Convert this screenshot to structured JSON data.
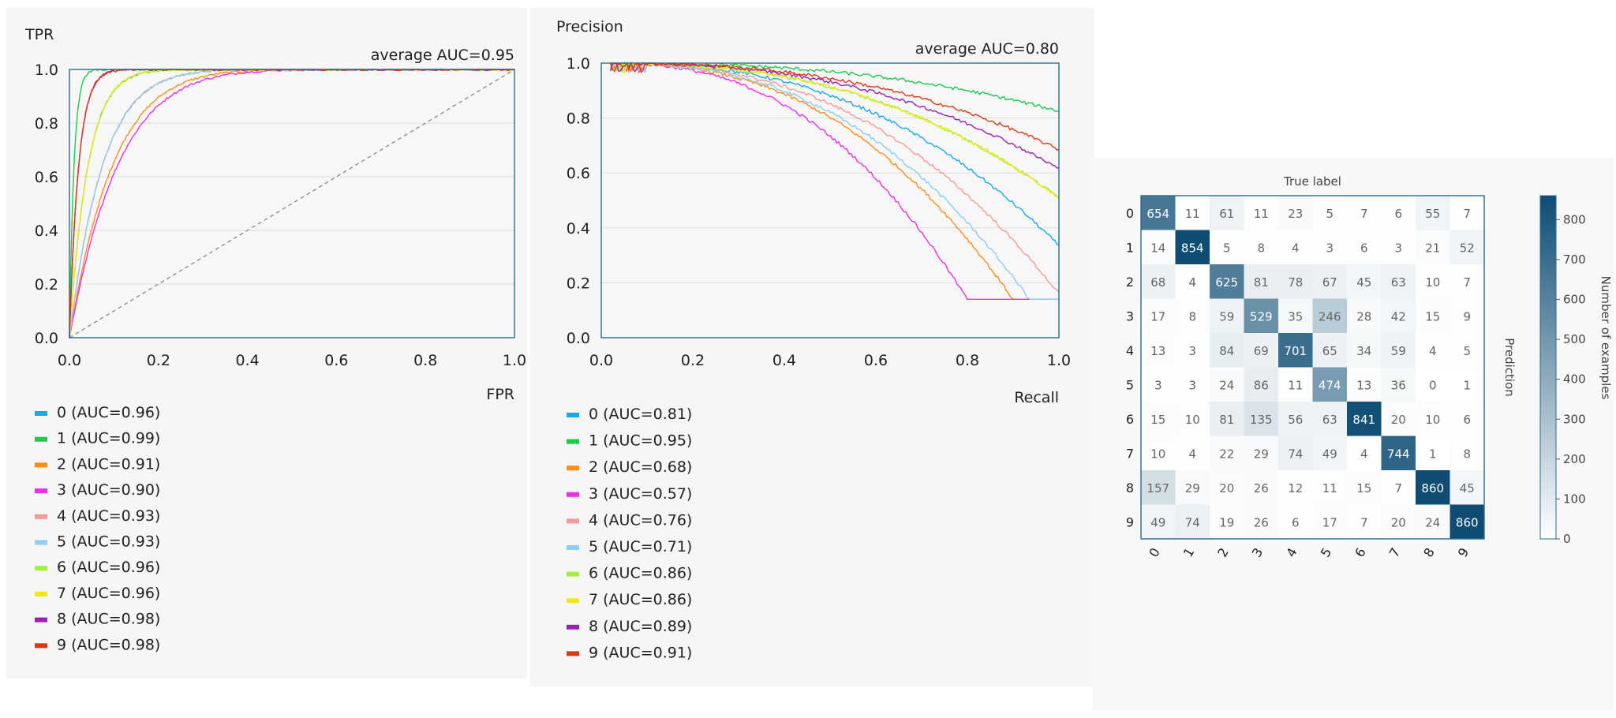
{
  "chart_data": [
    {
      "type": "line",
      "name": "roc",
      "xlabel": "FPR",
      "ylabel": "TPR",
      "annotation": "average AUC=0.95",
      "xlim": [
        0,
        1
      ],
      "ylim": [
        0,
        1
      ],
      "ticks": [
        "0.0",
        "0.2",
        "0.4",
        "0.6",
        "0.8",
        "1.0"
      ],
      "grid": "horizontal",
      "legend_position": "below",
      "series": [
        {
          "name": "0 (AUC=0.96)",
          "auc": 0.96,
          "color": "#1aa7ec"
        },
        {
          "name": "1 (AUC=0.99)",
          "auc": 0.99,
          "color": "#1ec94c"
        },
        {
          "name": "2 (AUC=0.91)",
          "auc": 0.91,
          "color": "#ff8c1a"
        },
        {
          "name": "3 (AUC=0.90)",
          "auc": 0.9,
          "color": "#ee2ee8"
        },
        {
          "name": "4 (AUC=0.93)",
          "auc": 0.93,
          "color": "#f49a9a"
        },
        {
          "name": "5 (AUC=0.93)",
          "auc": 0.93,
          "color": "#8ecbf5"
        },
        {
          "name": "6 (AUC=0.96)",
          "auc": 0.96,
          "color": "#9ef23c"
        },
        {
          "name": "7 (AUC=0.96)",
          "auc": 0.96,
          "color": "#f2e61a"
        },
        {
          "name": "8 (AUC=0.98)",
          "auc": 0.98,
          "color": "#9b1fb5"
        },
        {
          "name": "9 (AUC=0.98)",
          "auc": 0.98,
          "color": "#d93a12"
        }
      ]
    },
    {
      "type": "line",
      "name": "precision-recall",
      "xlabel": "Recall",
      "ylabel": "Precision",
      "annotation": "average AUC=0.80",
      "xlim": [
        0,
        1
      ],
      "ylim": [
        0,
        1
      ],
      "ticks": [
        "0.0",
        "0.2",
        "0.4",
        "0.6",
        "0.8",
        "1.0"
      ],
      "grid": "horizontal",
      "legend_position": "below",
      "series": [
        {
          "name": "0 (AUC=0.81)",
          "auc": 0.81,
          "color": "#1aa7ec"
        },
        {
          "name": "1 (AUC=0.95)",
          "auc": 0.95,
          "color": "#1ec94c"
        },
        {
          "name": "2 (AUC=0.68)",
          "auc": 0.68,
          "color": "#ff8c1a"
        },
        {
          "name": "3 (AUC=0.57)",
          "auc": 0.57,
          "color": "#ee2ee8"
        },
        {
          "name": "4 (AUC=0.76)",
          "auc": 0.76,
          "color": "#f49a9a"
        },
        {
          "name": "5 (AUC=0.71)",
          "auc": 0.71,
          "color": "#8ecbf5"
        },
        {
          "name": "6 (AUC=0.86)",
          "auc": 0.86,
          "color": "#9ef23c"
        },
        {
          "name": "7 (AUC=0.86)",
          "auc": 0.86,
          "color": "#f2e61a"
        },
        {
          "name": "8 (AUC=0.89)",
          "auc": 0.89,
          "color": "#9b1fb5"
        },
        {
          "name": "9 (AUC=0.91)",
          "auc": 0.91,
          "color": "#d93a12"
        }
      ]
    },
    {
      "type": "heatmap",
      "name": "confusion-matrix",
      "xlabel": "True label",
      "ylabel": "Prediction",
      "colorbar_label": "Number of examples",
      "colorbar_ticks": [
        0,
        100,
        200,
        300,
        400,
        500,
        600,
        700,
        800
      ],
      "colorbar_max": 860,
      "colormap": [
        "#ffffff",
        "#0e4c73"
      ],
      "labels": [
        "0",
        "1",
        "2",
        "3",
        "4",
        "5",
        "6",
        "7",
        "8",
        "9"
      ],
      "matrix": [
        [
          654,
          11,
          61,
          11,
          23,
          5,
          7,
          6,
          55,
          7
        ],
        [
          14,
          854,
          5,
          8,
          4,
          3,
          6,
          3,
          21,
          52
        ],
        [
          68,
          4,
          625,
          81,
          78,
          67,
          45,
          63,
          10,
          7
        ],
        [
          17,
          8,
          59,
          529,
          35,
          246,
          28,
          42,
          15,
          9
        ],
        [
          13,
          3,
          84,
          69,
          701,
          65,
          34,
          59,
          4,
          5
        ],
        [
          3,
          3,
          24,
          86,
          11,
          474,
          13,
          36,
          0,
          1
        ],
        [
          15,
          10,
          81,
          135,
          56,
          63,
          841,
          20,
          10,
          6
        ],
        [
          10,
          4,
          22,
          29,
          74,
          49,
          4,
          744,
          1,
          8
        ],
        [
          157,
          29,
          20,
          26,
          12,
          11,
          15,
          7,
          860,
          45
        ],
        [
          49,
          74,
          19,
          26,
          6,
          17,
          7,
          20,
          24,
          860
        ]
      ]
    }
  ]
}
